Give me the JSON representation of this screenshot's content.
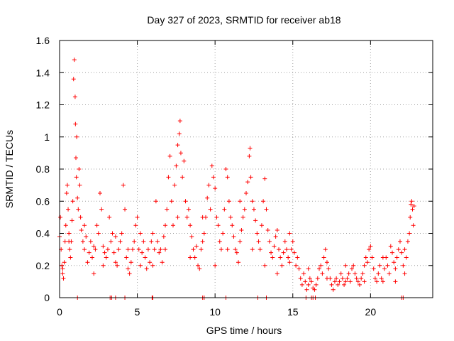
{
  "chart_data": {
    "type": "scatter",
    "title": "Day 327 of 2023, SRMTID for receiver ab18",
    "xlabel": "GPS time / hours",
    "ylabel": "SRMTID / TECUs",
    "xlim": [
      0,
      24
    ],
    "ylim": [
      0,
      1.6
    ],
    "xticks": [
      0,
      5,
      10,
      15,
      20
    ],
    "xtick_labels": [
      "0",
      "5",
      "10",
      "15",
      "20"
    ],
    "yticks": [
      0,
      0.2,
      0.4,
      0.6,
      0.8,
      1.0,
      1.2,
      1.4,
      1.6
    ],
    "ytick_labels": [
      "0",
      "0.2",
      "0.4",
      "0.6",
      "0.8",
      "1",
      "1.2",
      "1.4",
      "1.6"
    ],
    "grid": true,
    "marker": "plus",
    "color": "#ff0000",
    "series": [
      {
        "name": "SRMTID",
        "points": [
          [
            0.0,
            0.38
          ],
          [
            0.05,
            0.5
          ],
          [
            0.1,
            0.3
          ],
          [
            0.15,
            0.2
          ],
          [
            0.2,
            0.15
          ],
          [
            0.25,
            0.12
          ],
          [
            0.3,
            0.22
          ],
          [
            0.35,
            0.35
          ],
          [
            0.4,
            0.45
          ],
          [
            0.45,
            0.65
          ],
          [
            0.5,
            0.7
          ],
          [
            0.55,
            0.55
          ],
          [
            0.6,
            0.4
          ],
          [
            0.65,
            0.3
          ],
          [
            0.7,
            0.25
          ],
          [
            0.75,
            0.35
          ],
          [
            0.8,
            0.48
          ],
          [
            0.85,
            0.6
          ],
          [
            0.9,
            1.36
          ],
          [
            0.95,
            1.48
          ],
          [
            1.0,
            1.25
          ],
          [
            1.02,
            1.08
          ],
          [
            1.05,
            0.87
          ],
          [
            1.08,
            0.75
          ],
          [
            1.1,
            1.0
          ],
          [
            1.15,
            0.62
          ],
          [
            1.2,
            0.55
          ],
          [
            1.25,
            0.8
          ],
          [
            1.3,
            0.7
          ],
          [
            1.35,
            0.5
          ],
          [
            1.4,
            0.42
          ],
          [
            1.5,
            0.35
          ],
          [
            1.6,
            0.3
          ],
          [
            1.7,
            0.38
          ],
          [
            1.8,
            0.22
          ],
          [
            1.9,
            0.28
          ],
          [
            2.0,
            0.35
          ],
          [
            2.1,
            0.25
          ],
          [
            2.2,
            0.32
          ],
          [
            2.3,
            0.3
          ],
          [
            2.4,
            0.45
          ],
          [
            2.5,
            0.4
          ],
          [
            2.6,
            0.65
          ],
          [
            2.7,
            0.55
          ],
          [
            2.8,
            0.32
          ],
          [
            2.9,
            0.28
          ],
          [
            3.0,
            0.25
          ],
          [
            3.1,
            0.3
          ],
          [
            3.2,
            0.5
          ],
          [
            3.3,
            0.35
          ],
          [
            3.4,
            0.4
          ],
          [
            3.5,
            0.28
          ],
          [
            3.6,
            0.22
          ],
          [
            3.7,
            0.2
          ],
          [
            3.8,
            0.3
          ],
          [
            3.9,
            0.35
          ],
          [
            4.0,
            0.4
          ],
          [
            4.1,
            0.7
          ],
          [
            4.2,
            0.55
          ],
          [
            4.3,
            0.25
          ],
          [
            4.4,
            0.18
          ],
          [
            4.5,
            0.15
          ],
          [
            4.6,
            0.22
          ],
          [
            4.7,
            0.3
          ],
          [
            4.8,
            0.35
          ],
          [
            4.9,
            0.45
          ],
          [
            5.0,
            0.5
          ],
          [
            5.1,
            0.3
          ],
          [
            5.2,
            0.2
          ],
          [
            5.3,
            0.28
          ],
          [
            5.4,
            0.35
          ],
          [
            5.5,
            0.25
          ],
          [
            5.6,
            0.18
          ],
          [
            5.7,
            0.3
          ],
          [
            5.8,
            0.22
          ],
          [
            5.9,
            0.35
          ],
          [
            6.0,
            0.4
          ],
          [
            6.1,
            0.3
          ],
          [
            6.2,
            0.6
          ],
          [
            6.3,
            0.35
          ],
          [
            6.4,
            0.28
          ],
          [
            6.5,
            0.3
          ],
          [
            6.6,
            0.22
          ],
          [
            6.7,
            0.38
          ],
          [
            6.8,
            0.45
          ],
          [
            6.9,
            0.55
          ],
          [
            7.0,
            0.75
          ],
          [
            7.1,
            0.88
          ],
          [
            7.2,
            0.6
          ],
          [
            7.3,
            0.45
          ],
          [
            7.4,
            0.7
          ],
          [
            7.5,
            0.82
          ],
          [
            7.6,
            0.95
          ],
          [
            7.7,
            1.02
          ],
          [
            7.75,
            1.1
          ],
          [
            7.8,
            0.9
          ],
          [
            7.9,
            0.75
          ],
          [
            8.0,
            0.85
          ],
          [
            8.1,
            0.6
          ],
          [
            8.2,
            0.5
          ],
          [
            8.3,
            0.55
          ],
          [
            8.4,
            0.45
          ],
          [
            8.5,
            0.38
          ],
          [
            8.6,
            0.3
          ],
          [
            8.7,
            0.25
          ],
          [
            8.8,
            0.32
          ],
          [
            8.9,
            0.2
          ],
          [
            9.0,
            0.18
          ],
          [
            9.1,
            0.3
          ],
          [
            9.2,
            0.35
          ],
          [
            9.3,
            0.4
          ],
          [
            9.4,
            0.5
          ],
          [
            9.5,
            0.62
          ],
          [
            9.6,
            0.7
          ],
          [
            9.7,
            0.55
          ],
          [
            9.8,
            0.82
          ],
          [
            9.9,
            0.75
          ],
          [
            10.0,
            0.68
          ],
          [
            10.1,
            0.5
          ],
          [
            10.2,
            0.45
          ],
          [
            10.3,
            0.35
          ],
          [
            10.4,
            0.3
          ],
          [
            10.5,
            0.4
          ],
          [
            10.6,
            0.55
          ],
          [
            10.7,
            0.8
          ],
          [
            10.8,
            0.75
          ],
          [
            10.9,
            0.6
          ],
          [
            11.0,
            0.5
          ],
          [
            11.1,
            0.45
          ],
          [
            11.2,
            0.38
          ],
          [
            11.3,
            0.3
          ],
          [
            11.4,
            0.28
          ],
          [
            11.5,
            0.22
          ],
          [
            11.6,
            0.35
          ],
          [
            11.7,
            0.42
          ],
          [
            11.8,
            0.5
          ],
          [
            11.9,
            0.55
          ],
          [
            12.0,
            0.65
          ],
          [
            12.1,
            0.72
          ],
          [
            12.2,
            0.88
          ],
          [
            12.25,
            0.93
          ],
          [
            12.3,
            0.75
          ],
          [
            12.4,
            0.6
          ],
          [
            12.5,
            0.55
          ],
          [
            12.6,
            0.48
          ],
          [
            12.7,
            0.4
          ],
          [
            12.8,
            0.35
          ],
          [
            12.9,
            0.3
          ],
          [
            13.0,
            0.45
          ],
          [
            13.1,
            0.6
          ],
          [
            13.2,
            0.74
          ],
          [
            13.3,
            0.55
          ],
          [
            13.4,
            0.42
          ],
          [
            13.5,
            0.35
          ],
          [
            13.6,
            0.28
          ],
          [
            13.7,
            0.25
          ],
          [
            13.8,
            0.32
          ],
          [
            13.9,
            0.38
          ],
          [
            14.0,
            0.42
          ],
          [
            14.1,
            0.3
          ],
          [
            14.2,
            0.25
          ],
          [
            14.3,
            0.2
          ],
          [
            14.4,
            0.28
          ],
          [
            14.5,
            0.35
          ],
          [
            14.6,
            0.3
          ],
          [
            14.7,
            0.25
          ],
          [
            14.8,
            0.22
          ],
          [
            14.9,
            0.3
          ],
          [
            15.0,
            0.35
          ],
          [
            15.1,
            0.28
          ],
          [
            15.2,
            0.2
          ],
          [
            15.3,
            0.25
          ],
          [
            15.4,
            0.18
          ],
          [
            15.5,
            0.12
          ],
          [
            15.6,
            0.08
          ],
          [
            15.7,
            0.15
          ],
          [
            15.8,
            0.1
          ],
          [
            15.9,
            0.05
          ],
          [
            16.0,
            0.08
          ],
          [
            16.1,
            0.12
          ],
          [
            16.2,
            0.1
          ],
          [
            16.3,
            0.06
          ],
          [
            16.4,
            0.05
          ],
          [
            16.5,
            0.08
          ],
          [
            16.6,
            0.12
          ],
          [
            16.7,
            0.18
          ],
          [
            16.8,
            0.2
          ],
          [
            16.9,
            0.15
          ],
          [
            17.0,
            0.25
          ],
          [
            17.1,
            0.3
          ],
          [
            17.2,
            0.22
          ],
          [
            17.3,
            0.18
          ],
          [
            17.4,
            0.12
          ],
          [
            17.5,
            0.08
          ],
          [
            17.6,
            0.05
          ],
          [
            17.7,
            0.1
          ],
          [
            17.8,
            0.12
          ],
          [
            17.9,
            0.08
          ],
          [
            18.0,
            0.1
          ],
          [
            18.1,
            0.15
          ],
          [
            18.2,
            0.12
          ],
          [
            18.3,
            0.08
          ],
          [
            18.4,
            0.1
          ],
          [
            18.5,
            0.12
          ],
          [
            18.6,
            0.15
          ],
          [
            18.7,
            0.1
          ],
          [
            18.8,
            0.18
          ],
          [
            18.9,
            0.2
          ],
          [
            19.0,
            0.15
          ],
          [
            19.1,
            0.12
          ],
          [
            19.2,
            0.1
          ],
          [
            19.3,
            0.08
          ],
          [
            19.4,
            0.12
          ],
          [
            19.5,
            0.15
          ],
          [
            19.6,
            0.2
          ],
          [
            19.7,
            0.25
          ],
          [
            19.8,
            0.22
          ],
          [
            19.9,
            0.3
          ],
          [
            20.0,
            0.32
          ],
          [
            20.1,
            0.25
          ],
          [
            20.2,
            0.18
          ],
          [
            20.3,
            0.12
          ],
          [
            20.4,
            0.1
          ],
          [
            20.5,
            0.15
          ],
          [
            20.6,
            0.2
          ],
          [
            20.7,
            0.12
          ],
          [
            20.8,
            0.1
          ],
          [
            20.9,
            0.18
          ],
          [
            21.0,
            0.25
          ],
          [
            21.1,
            0.2
          ],
          [
            21.2,
            0.15
          ],
          [
            21.3,
            0.32
          ],
          [
            21.4,
            0.28
          ],
          [
            21.5,
            0.22
          ],
          [
            21.6,
            0.18
          ],
          [
            21.7,
            0.25
          ],
          [
            21.8,
            0.3
          ],
          [
            21.9,
            0.35
          ],
          [
            22.0,
            0.28
          ],
          [
            22.1,
            0.2
          ],
          [
            22.2,
            0.15
          ],
          [
            22.3,
            0.25
          ],
          [
            22.4,
            0.35
          ],
          [
            22.5,
            0.4
          ],
          [
            22.55,
            0.5
          ],
          [
            22.6,
            0.58
          ],
          [
            22.65,
            0.6
          ],
          [
            22.7,
            0.55
          ],
          [
            22.75,
            0.45
          ],
          [
            22.8,
            0.57
          ],
          [
            0.2,
            0.18
          ],
          [
            0.6,
            0.35
          ],
          [
            1.6,
            0.45
          ],
          [
            2.2,
            0.15
          ],
          [
            2.8,
            0.2
          ],
          [
            3.6,
            0.38
          ],
          [
            4.4,
            0.3
          ],
          [
            5.2,
            0.4
          ],
          [
            6.0,
            0.2
          ],
          [
            6.8,
            0.3
          ],
          [
            7.6,
            0.5
          ],
          [
            8.4,
            0.25
          ],
          [
            9.2,
            0.5
          ],
          [
            10.0,
            0.2
          ],
          [
            10.8,
            0.3
          ],
          [
            11.6,
            0.6
          ],
          [
            12.4,
            0.3
          ],
          [
            13.2,
            0.2
          ],
          [
            14.0,
            0.15
          ],
          [
            14.8,
            0.4
          ],
          [
            16.0,
            0.18
          ],
          [
            17.2,
            0.12
          ],
          [
            18.4,
            0.2
          ],
          [
            19.6,
            0.1
          ],
          [
            20.8,
            0.25
          ],
          [
            21.6,
            0.1
          ],
          [
            22.2,
            0.3
          ],
          [
            1.15,
            0.0
          ],
          [
            3.25,
            0.0
          ],
          [
            3.35,
            0.0
          ],
          [
            3.6,
            0.0
          ],
          [
            4.2,
            0.0
          ],
          [
            5.95,
            0.0
          ],
          [
            6.0,
            0.0
          ],
          [
            9.2,
            0.0
          ],
          [
            9.3,
            0.0
          ],
          [
            10.7,
            0.0
          ],
          [
            12.75,
            0.0
          ],
          [
            13.3,
            0.0
          ],
          [
            15.85,
            0.0
          ],
          [
            16.2,
            0.0
          ],
          [
            16.3,
            0.0
          ],
          [
            16.45,
            0.0
          ],
          [
            22.0,
            0.0
          ],
          [
            22.1,
            0.0
          ]
        ]
      }
    ]
  }
}
